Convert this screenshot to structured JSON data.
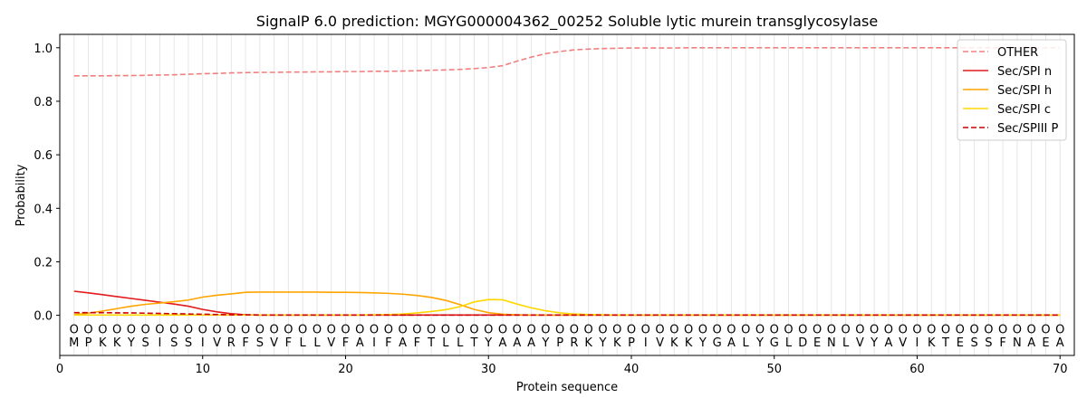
{
  "chart_data": {
    "type": "line",
    "title": "SignalP 6.0 prediction: MGYG000004362_00252 Soluble lytic murein transglycosylase",
    "xlabel": "Protein sequence",
    "ylabel": "Probability",
    "xlim": [
      0,
      71
    ],
    "ylim": [
      -0.15,
      1.05
    ],
    "x_ticks": [
      0,
      10,
      20,
      30,
      40,
      50,
      60,
      70
    ],
    "y_ticks": [
      0.0,
      0.2,
      0.4,
      0.6,
      0.8,
      1.0
    ],
    "grid": "vertical lines at each residue",
    "legend_position": "top-right",
    "sequence": [
      "M",
      "P",
      "K",
      "K",
      "Y",
      "S",
      "I",
      "S",
      "S",
      "I",
      "V",
      "R",
      "F",
      "S",
      "V",
      "F",
      "L",
      "L",
      "V",
      "F",
      "A",
      "I",
      "F",
      "A",
      "F",
      "T",
      "L",
      "L",
      "T",
      "Y",
      "A",
      "A",
      "A",
      "Y",
      "P",
      "R",
      "K",
      "Y",
      "K",
      "P",
      "I",
      "V",
      "K",
      "K",
      "Y",
      "G",
      "A",
      "L",
      "Y",
      "G",
      "L",
      "D",
      "E",
      "N",
      "L",
      "V",
      "Y",
      "A",
      "V",
      "I",
      "K",
      "T",
      "E",
      "S",
      "S",
      "F",
      "N",
      "A",
      "E",
      "A"
    ],
    "region_label": "O",
    "series": [
      {
        "name": "OTHER",
        "color": "#f08080",
        "dash": "dashed",
        "values": [
          0.895,
          0.895,
          0.895,
          0.896,
          0.896,
          0.897,
          0.898,
          0.899,
          0.901,
          0.903,
          0.904,
          0.906,
          0.907,
          0.908,
          0.908,
          0.909,
          0.909,
          0.91,
          0.91,
          0.911,
          0.911,
          0.912,
          0.912,
          0.913,
          0.914,
          0.916,
          0.917,
          0.919,
          0.922,
          0.926,
          0.933,
          0.95,
          0.965,
          0.978,
          0.986,
          0.992,
          0.995,
          0.997,
          0.998,
          0.999,
          0.999,
          0.999,
          0.999,
          1.0,
          1.0,
          1.0,
          1.0,
          1.0,
          1.0,
          1.0,
          1.0,
          1.0,
          1.0,
          1.0,
          1.0,
          1.0,
          1.0,
          1.0,
          1.0,
          1.0,
          1.0,
          1.0,
          1.0,
          1.0,
          1.0,
          1.0,
          1.0,
          1.0,
          1.0,
          1.0
        ]
      },
      {
        "name": "Sec/SPI n",
        "color": "#e41a1c",
        "dash": "solid",
        "values": [
          0.09,
          0.084,
          0.077,
          0.07,
          0.063,
          0.056,
          0.049,
          0.042,
          0.034,
          0.022,
          0.013,
          0.006,
          0.002,
          0.001,
          0.001,
          0.001,
          0.001,
          0.001,
          0.001,
          0.001,
          0.001,
          0.001,
          0.001,
          0.001,
          0.001,
          0.001,
          0.001,
          0.001,
          0.001,
          0.001,
          0.001,
          0.001,
          0.001,
          0.001,
          0.001,
          0.001,
          0.001,
          0.001,
          0.001,
          0.001,
          0.001,
          0.001,
          0.001,
          0.001,
          0.001,
          0.001,
          0.001,
          0.001,
          0.001,
          0.001,
          0.001,
          0.001,
          0.001,
          0.001,
          0.001,
          0.001,
          0.001,
          0.001,
          0.001,
          0.001,
          0.001,
          0.001,
          0.001,
          0.001,
          0.001,
          0.001,
          0.001,
          0.001,
          0.001,
          0.001
        ]
      },
      {
        "name": "Sec/SPI h",
        "color": "#ffa500",
        "dash": "solid",
        "values": [
          0.003,
          0.008,
          0.016,
          0.025,
          0.034,
          0.041,
          0.046,
          0.051,
          0.057,
          0.068,
          0.075,
          0.08,
          0.086,
          0.087,
          0.087,
          0.087,
          0.087,
          0.087,
          0.086,
          0.086,
          0.085,
          0.084,
          0.082,
          0.079,
          0.074,
          0.067,
          0.056,
          0.04,
          0.022,
          0.01,
          0.004,
          0.002,
          0.001,
          0.001,
          0.001,
          0.001,
          0.001,
          0.001,
          0.001,
          0.001,
          0.001,
          0.001,
          0.001,
          0.001,
          0.001,
          0.001,
          0.001,
          0.001,
          0.001,
          0.001,
          0.001,
          0.001,
          0.001,
          0.001,
          0.001,
          0.001,
          0.001,
          0.001,
          0.001,
          0.001,
          0.001,
          0.001,
          0.001,
          0.001,
          0.001,
          0.001,
          0.001,
          0.001,
          0.001,
          0.001
        ]
      },
      {
        "name": "Sec/SPI c",
        "color": "#ffd700",
        "dash": "solid",
        "values": [
          0.001,
          0.001,
          0.001,
          0.001,
          0.001,
          0.001,
          0.001,
          0.001,
          0.001,
          0.001,
          0.001,
          0.001,
          0.001,
          0.001,
          0.001,
          0.001,
          0.001,
          0.001,
          0.001,
          0.001,
          0.001,
          0.002,
          0.003,
          0.005,
          0.009,
          0.014,
          0.021,
          0.032,
          0.05,
          0.059,
          0.058,
          0.042,
          0.028,
          0.017,
          0.009,
          0.005,
          0.003,
          0.002,
          0.001,
          0.001,
          0.001,
          0.001,
          0.001,
          0.001,
          0.001,
          0.001,
          0.001,
          0.001,
          0.001,
          0.001,
          0.001,
          0.001,
          0.001,
          0.001,
          0.001,
          0.001,
          0.001,
          0.001,
          0.001,
          0.001,
          0.001,
          0.001,
          0.001,
          0.001,
          0.001,
          0.001,
          0.001,
          0.001,
          0.001,
          0.001
        ]
      },
      {
        "name": "Sec/SPIII P",
        "color": "#cc0000",
        "dash": "dashed",
        "values": [
          0.01,
          0.01,
          0.01,
          0.009,
          0.009,
          0.008,
          0.007,
          0.006,
          0.005,
          0.004,
          0.003,
          0.002,
          0.002,
          0.001,
          0.001,
          0.001,
          0.001,
          0.001,
          0.001,
          0.001,
          0.001,
          0.001,
          0.001,
          0.001,
          0.001,
          0.001,
          0.001,
          0.001,
          0.001,
          0.001,
          0.001,
          0.001,
          0.001,
          0.001,
          0.001,
          0.001,
          0.001,
          0.001,
          0.001,
          0.001,
          0.001,
          0.001,
          0.001,
          0.001,
          0.001,
          0.001,
          0.001,
          0.001,
          0.001,
          0.001,
          0.001,
          0.001,
          0.001,
          0.001,
          0.001,
          0.001,
          0.001,
          0.001,
          0.001,
          0.001,
          0.001,
          0.001,
          0.001,
          0.001,
          0.001,
          0.001,
          0.001,
          0.001,
          0.001,
          0.001
        ]
      }
    ]
  }
}
